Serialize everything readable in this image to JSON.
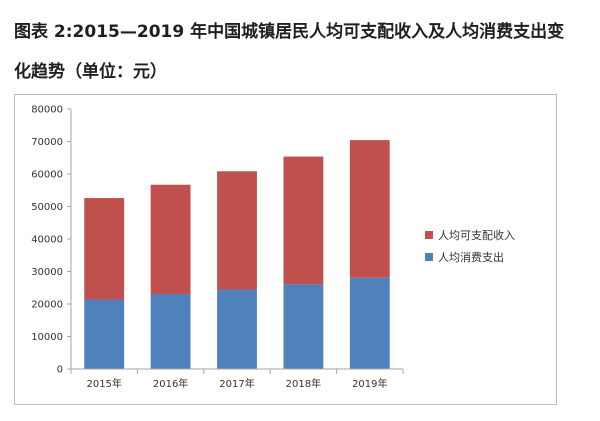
{
  "page": {
    "title": "图表 2:2015—2019 年中国城镇居民人均可支配收入及人均消费支出变化趋势（单位：元）"
  },
  "chart_data": {
    "type": "bar",
    "stacked": true,
    "title": "",
    "xlabel": "",
    "ylabel": "",
    "categories": [
      "2015年",
      "2016年",
      "2017年",
      "2018年",
      "2019年"
    ],
    "series": [
      {
        "name": "人均消费支出",
        "color": "#4f81bd",
        "values": [
          21392,
          23079,
          24445,
          26112,
          28063
        ]
      },
      {
        "name": "人均可支配收入",
        "color": "#c0504d",
        "values": [
          31195,
          33616,
          36396,
          39251,
          42359
        ]
      }
    ],
    "stack_totals": [
      52587,
      56695,
      60841,
      65363,
      70422
    ],
    "ylim": [
      0,
      80000
    ],
    "yticks": [
      0,
      10000,
      20000,
      30000,
      40000,
      50000,
      60000,
      70000,
      80000
    ],
    "grid": false,
    "legend": {
      "position": "right",
      "order": [
        "人均可支配收入",
        "人均消费支出"
      ]
    },
    "axis_color": "#a6a6a6"
  }
}
